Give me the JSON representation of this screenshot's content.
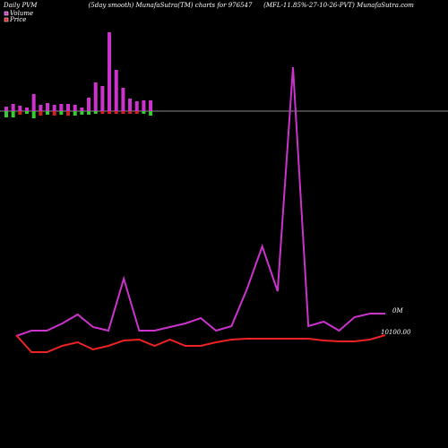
{
  "chart_data": {
    "type": "pvm",
    "title": "Daily PVM",
    "subtitle": "(5day smooth) MunafaSutra(TM) charts for 976547",
    "source": "(MFL-11.85%-27-10-26-PVT) MunafaSutra.com",
    "bars": {
      "ylim": [
        0,
        124
      ],
      "up": {
        "color": "#cc33cc",
        "values": [
          5,
          8,
          6,
          4,
          19,
          7,
          9,
          7,
          8,
          8,
          7,
          4,
          15,
          32,
          28,
          88,
          46,
          26,
          14,
          11,
          12,
          12
        ]
      },
      "down": {
        "colors": [
          "#33cc33",
          "#33cc33",
          "#cc2222",
          "#33cc33",
          "#33cc33",
          "#cc2222",
          "#33cc33",
          "#cc2222",
          "#33cc33",
          "#cc2222",
          "#33cc33",
          "#33cc33",
          "#33cc33",
          "#33cc33",
          "#cc2222",
          "#cc2222",
          "#cc2222",
          "#cc2222",
          "#cc2222",
          "#cc2222",
          "#33cc33",
          "#33cc33"
        ],
        "values": [
          7,
          7,
          4,
          3,
          8,
          5,
          4,
          5,
          4,
          5,
          5,
          4,
          4,
          3,
          3,
          3,
          3,
          3,
          3,
          3,
          3,
          5
        ]
      }
    },
    "ylim": [
      0,
      500
    ],
    "categories": [
      null,
      null,
      null,
      null,
      null,
      null,
      null,
      null,
      null,
      null,
      null,
      null,
      null,
      null,
      null,
      null,
      null,
      null,
      null,
      null,
      null,
      null,
      null,
      null,
      null
    ],
    "series": [
      {
        "name": "Volume",
        "color": "#cc33cc",
        "values": [
          125,
          131,
          131,
          139,
          149,
          135,
          131,
          189,
          131,
          131,
          135,
          139,
          145,
          131,
          136,
          177,
          225,
          175,
          425,
          136,
          141,
          131,
          146,
          150,
          150
        ]
      },
      {
        "name": "Price",
        "color": "#ee2222",
        "values": [
          126,
          107,
          107,
          114,
          118,
          110,
          114,
          120,
          121,
          114,
          121,
          114,
          114,
          118,
          121,
          122,
          122,
          122,
          122,
          122,
          120,
          119,
          119,
          121,
          126
        ]
      }
    ],
    "annotations": [
      "0M",
      "10100.00"
    ]
  }
}
